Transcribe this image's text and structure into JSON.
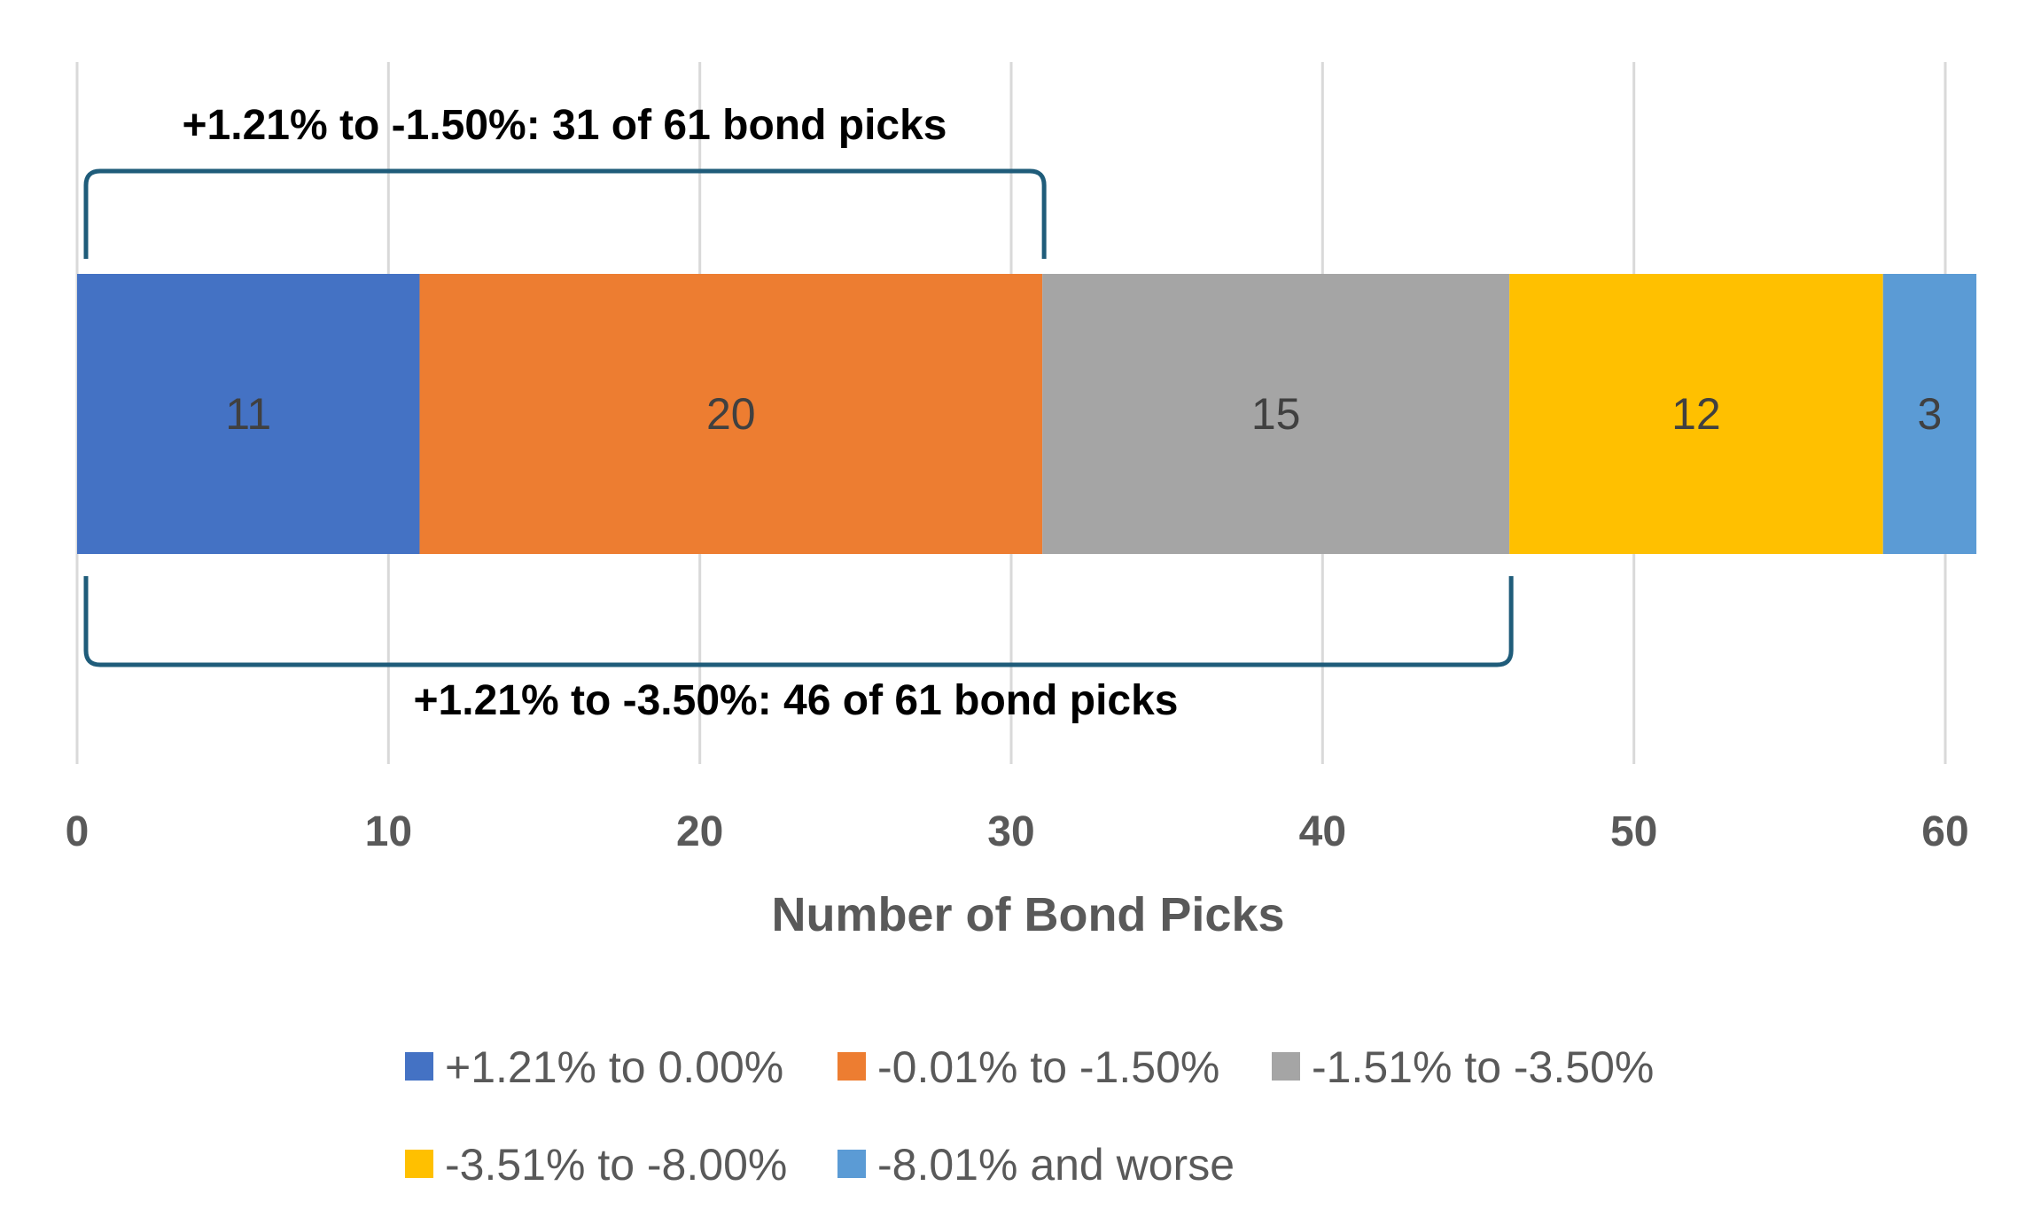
{
  "chart_data": {
    "type": "bar",
    "orientation": "horizontal",
    "stacked": true,
    "xlabel": "Number of Bond Picks",
    "xlim": [
      0,
      60
    ],
    "xticks": [
      0,
      10,
      20,
      30,
      40,
      50,
      60
    ],
    "grid": true,
    "legend_position": "bottom",
    "series": [
      {
        "name": "+1.21% to 0.00%",
        "value": 11,
        "color": "#4472C4"
      },
      {
        "name": "-0.01% to -1.50%",
        "value": 20,
        "color": "#ED7D31"
      },
      {
        "name": "-1.51% to -3.50%",
        "value": 15,
        "color": "#A5A5A5"
      },
      {
        "name": "-3.51% to -8.00%",
        "value": 12,
        "color": "#FFC000"
      },
      {
        "name": "-8.01% and worse",
        "value": 3,
        "color": "#5B9BD5"
      }
    ],
    "annotations": [
      {
        "text": "+1.21% to -1.50%: 31 of 61 bond picks",
        "from": 0,
        "to": 31,
        "side": "above"
      },
      {
        "text": "+1.21% to -3.50%: 46 of 61 bond picks",
        "from": 0,
        "to": 46,
        "side": "below"
      }
    ],
    "bracket_color": "#1F5C7A"
  }
}
